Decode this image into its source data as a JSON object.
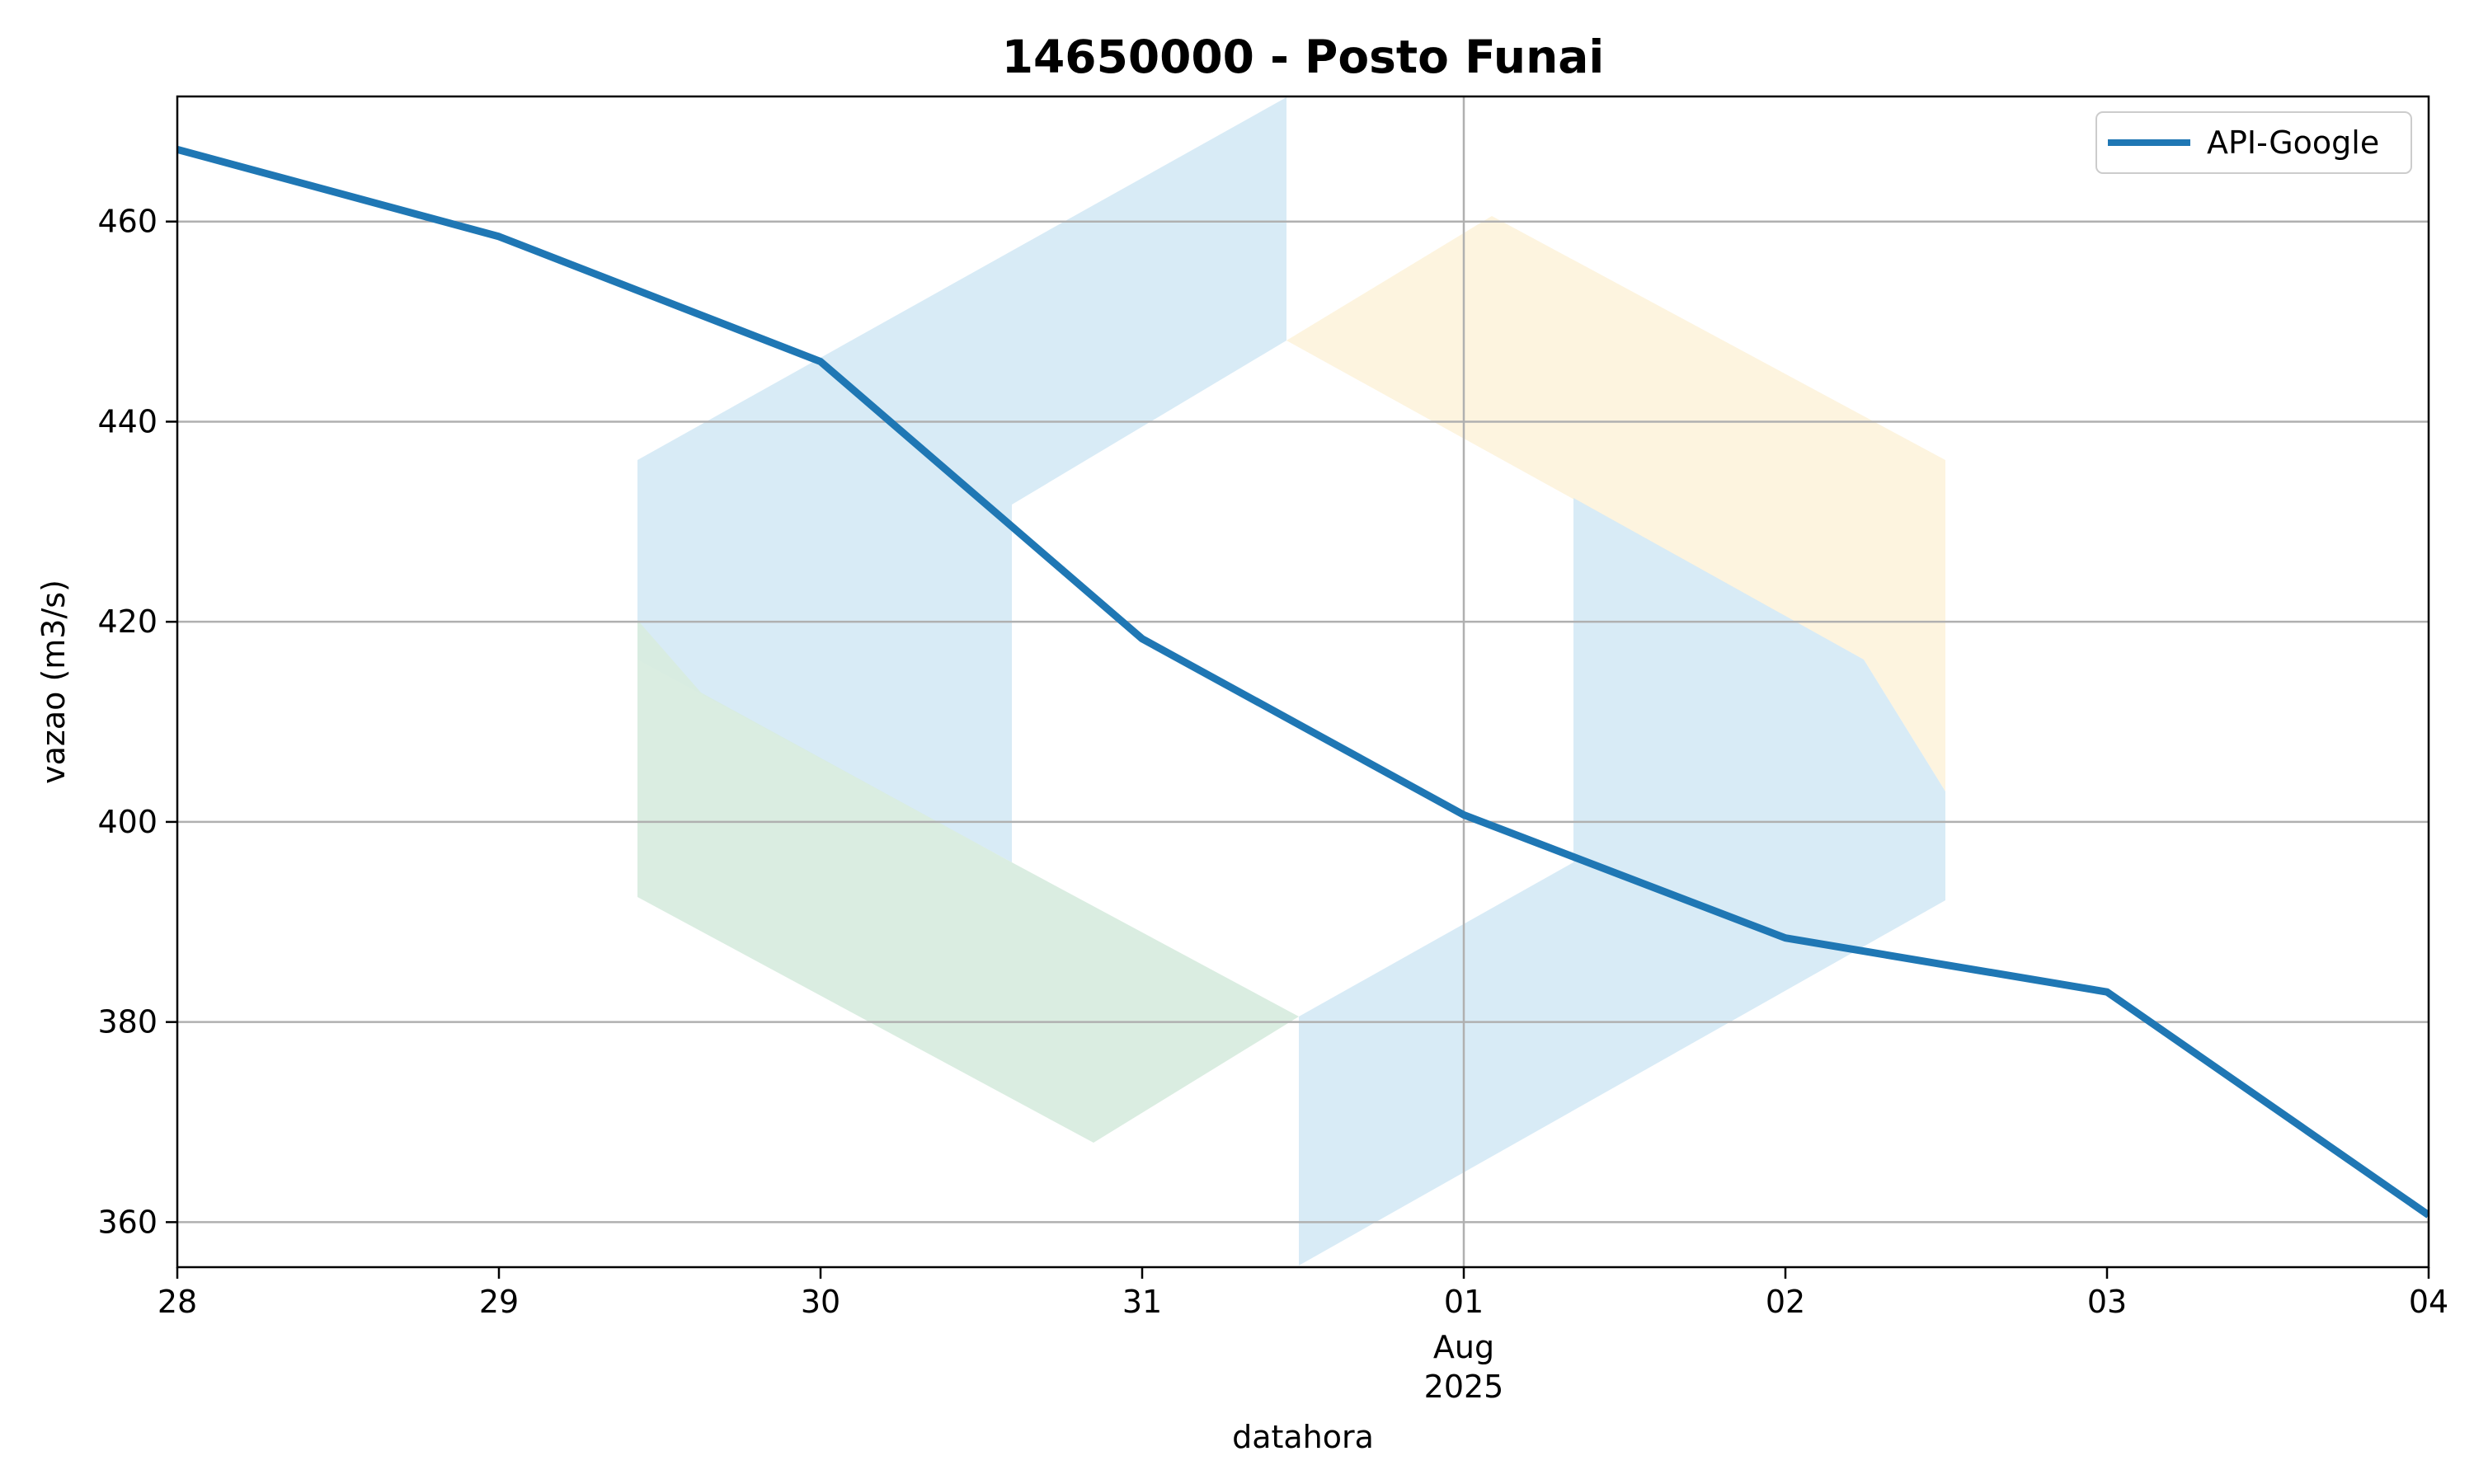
{
  "chart_data": {
    "type": "line",
    "title": "14650000 - Posto Funai",
    "xlabel": "datahora",
    "ylabel": "vazao (m3/s)",
    "x": [
      "2025-07-28",
      "2025-07-29",
      "2025-07-30",
      "2025-07-31",
      "2025-08-01",
      "2025-08-02",
      "2025-08-03",
      "2025-08-04"
    ],
    "x_tick_labels": [
      "28",
      "29",
      "30",
      "31",
      "01",
      "02",
      "03",
      "04"
    ],
    "x_tick_sublabel": {
      "month": "Aug",
      "year": "2025"
    },
    "series": [
      {
        "name": "API-Google",
        "color": "#1f77b4",
        "values": [
          467.2,
          458.5,
          446.0,
          418.3,
          400.7,
          388.4,
          383.0,
          360.7
        ]
      }
    ],
    "yticks": [
      360,
      380,
      400,
      420,
      440,
      460
    ],
    "ylim": [
      355.5,
      472.5
    ],
    "grid": true,
    "legend": "upper-right"
  },
  "watermark": {
    "name": "logo-watermark",
    "colors": [
      "#d6eaf6",
      "#fdf3dd",
      "#d8ecdf"
    ]
  }
}
